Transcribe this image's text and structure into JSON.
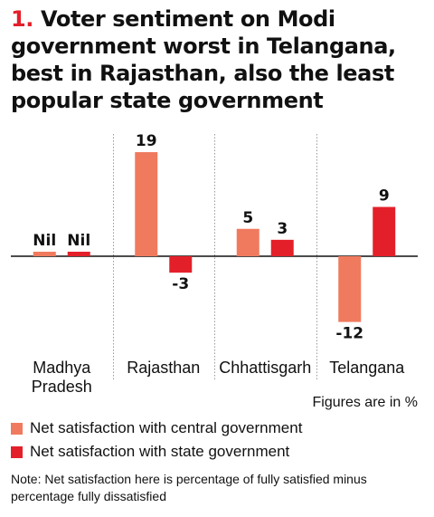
{
  "title": {
    "number": "1.",
    "text": "Voter sentiment on Modi government worst in Telangana, best in Rajasthan, also the least popular state government"
  },
  "chart_data": {
    "type": "bar",
    "categories": [
      "Madhya Pradesh",
      "Rajasthan",
      "Chhattisgarh",
      "Telangana"
    ],
    "category_lines": [
      [
        "Madhya",
        "Pradesh"
      ],
      [
        "Rajasthan"
      ],
      [
        "Chhattisgarh"
      ],
      [
        "Telangana"
      ]
    ],
    "series": [
      {
        "name": "Net satisfaction with central government",
        "color": "#f07a5e",
        "values": [
          0,
          19,
          5,
          -12
        ],
        "labels": [
          "Nil",
          "19",
          "5",
          "-12"
        ]
      },
      {
        "name": "Net satisfaction with state government",
        "color": "#e3202a",
        "values": [
          0,
          -3,
          3,
          9
        ],
        "labels": [
          "Nil",
          "-3",
          "3",
          "9"
        ]
      }
    ],
    "grid": false
  },
  "units_note": "Figures are in %",
  "footnote": "Note: Net satisfaction here is percentage of fully satisfied minus percentage fully dissatisfied"
}
